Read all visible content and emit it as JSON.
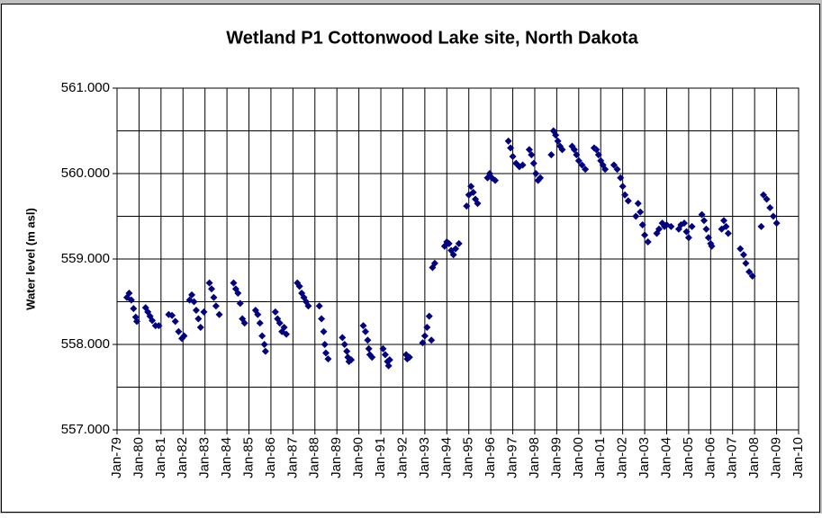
{
  "chart_data": {
    "type": "scatter",
    "title": "Wetland P1 Cottonwood Lake site, North Dakota",
    "y_label": "Water level (m asl)",
    "color": "#000080",
    "marker": "diamond",
    "grid": true,
    "xlim": [
      1979,
      2010
    ],
    "ylim": [
      557,
      561
    ],
    "xticks": [
      {
        "value": 1979,
        "label": "Jan-79"
      },
      {
        "value": 1980,
        "label": "Jan-80"
      },
      {
        "value": 1981,
        "label": "Jan-81"
      },
      {
        "value": 1982,
        "label": "Jan-82"
      },
      {
        "value": 1983,
        "label": "Jan-83"
      },
      {
        "value": 1984,
        "label": "Jan-84"
      },
      {
        "value": 1985,
        "label": "Jan-85"
      },
      {
        "value": 1986,
        "label": "Jan-86"
      },
      {
        "value": 1987,
        "label": "Jan-87"
      },
      {
        "value": 1988,
        "label": "Jan-88"
      },
      {
        "value": 1989,
        "label": "Jan-89"
      },
      {
        "value": 1990,
        "label": "Jan-90"
      },
      {
        "value": 1991,
        "label": "Jan-91"
      },
      {
        "value": 1992,
        "label": "Jan-92"
      },
      {
        "value": 1993,
        "label": "Jan-93"
      },
      {
        "value": 1994,
        "label": "Jan-94"
      },
      {
        "value": 1995,
        "label": "Jan-95"
      },
      {
        "value": 1996,
        "label": "Jan-96"
      },
      {
        "value": 1997,
        "label": "Jan-97"
      },
      {
        "value": 1998,
        "label": "Jan-98"
      },
      {
        "value": 1999,
        "label": "Jan-99"
      },
      {
        "value": 2000,
        "label": "Jan-00"
      },
      {
        "value": 2001,
        "label": "Jan-01"
      },
      {
        "value": 2002,
        "label": "Jan-02"
      },
      {
        "value": 2003,
        "label": "Jan-03"
      },
      {
        "value": 2004,
        "label": "Jan-04"
      },
      {
        "value": 2005,
        "label": "Jan-05"
      },
      {
        "value": 2006,
        "label": "Jan-06"
      },
      {
        "value": 2007,
        "label": "Jan-07"
      },
      {
        "value": 2008,
        "label": "Jan-08"
      },
      {
        "value": 2009,
        "label": "Jan-09"
      },
      {
        "value": 2010,
        "label": "Jan-10"
      }
    ],
    "yticks": [
      {
        "value": 557,
        "label": "557.000"
      },
      {
        "value": 558,
        "label": "558.000"
      },
      {
        "value": 559,
        "label": "559.000"
      },
      {
        "value": 560,
        "label": "560.000"
      },
      {
        "value": 561,
        "label": "561.000"
      }
    ],
    "yminor_ticks": [
      557.5,
      558.5,
      559.5,
      560.5
    ],
    "x": [
      1979.45,
      1979.55,
      1979.65,
      1979.75,
      1979.85,
      1979.9,
      1980.3,
      1980.4,
      1980.5,
      1980.6,
      1980.75,
      1980.9,
      1981.35,
      1981.5,
      1981.65,
      1981.8,
      1981.95,
      1982.05,
      1982.3,
      1982.4,
      1982.5,
      1982.6,
      1982.7,
      1982.8,
      1982.95,
      1983.2,
      1983.3,
      1983.4,
      1983.5,
      1983.65,
      1984.3,
      1984.4,
      1984.5,
      1984.6,
      1984.7,
      1984.8,
      1985.3,
      1985.4,
      1985.5,
      1985.6,
      1985.7,
      1985.75,
      1986.2,
      1986.3,
      1986.4,
      1986.5,
      1986.6,
      1986.7,
      1987.2,
      1987.3,
      1987.4,
      1987.5,
      1987.6,
      1987.7,
      1988.2,
      1988.3,
      1988.4,
      1988.45,
      1988.5,
      1988.6,
      1989.25,
      1989.35,
      1989.45,
      1989.5,
      1989.55,
      1989.65,
      1990.2,
      1990.3,
      1990.4,
      1990.45,
      1990.5,
      1990.6,
      1991.1,
      1991.2,
      1991.3,
      1991.35,
      1991.4,
      1992.15,
      1992.2,
      1992.3,
      1992.9,
      1993.0,
      1993.1,
      1993.2,
      1993.3,
      1993.35,
      1993.45,
      1993.9,
      1994.0,
      1994.1,
      1994.2,
      1994.3,
      1994.4,
      1994.55,
      1994.9,
      1995.0,
      1995.1,
      1995.2,
      1995.3,
      1995.4,
      1995.85,
      1995.95,
      1996.05,
      1996.2,
      1996.8,
      1996.9,
      1997.0,
      1997.15,
      1997.3,
      1997.45,
      1997.75,
      1997.85,
      1997.95,
      1998.05,
      1998.15,
      1998.25,
      1998.75,
      1998.85,
      1998.95,
      1999.05,
      1999.15,
      1999.25,
      1999.7,
      1999.8,
      1999.9,
      2000.0,
      2000.15,
      2000.3,
      2000.7,
      2000.8,
      2000.9,
      2001.0,
      2001.1,
      2001.2,
      2001.6,
      2001.75,
      2001.9,
      2002.0,
      2002.1,
      2002.25,
      2002.6,
      2002.7,
      2002.8,
      2002.9,
      2003.0,
      2003.15,
      2003.55,
      2003.65,
      2003.8,
      2003.9,
      2004.0,
      2004.2,
      2004.55,
      2004.65,
      2004.8,
      2004.9,
      2005.0,
      2005.15,
      2005.6,
      2005.7,
      2005.8,
      2005.9,
      2006.0,
      2006.05,
      2006.5,
      2006.6,
      2006.7,
      2006.8,
      2007.35,
      2007.5,
      2007.6,
      2007.75,
      2007.9,
      2008.3,
      2008.4,
      2008.55,
      2008.7,
      2008.85,
      2009.0
    ],
    "values": [
      558.55,
      558.6,
      558.52,
      558.42,
      558.32,
      558.27,
      558.43,
      558.38,
      558.33,
      558.28,
      558.22,
      558.22,
      558.35,
      558.34,
      558.27,
      558.15,
      558.07,
      558.1,
      558.52,
      558.58,
      558.5,
      558.4,
      558.3,
      558.2,
      558.38,
      558.72,
      558.65,
      558.55,
      558.45,
      558.35,
      558.72,
      558.65,
      558.6,
      558.48,
      558.3,
      558.25,
      558.4,
      558.35,
      558.25,
      558.1,
      558.0,
      557.92,
      558.38,
      558.3,
      558.25,
      558.15,
      558.2,
      558.12,
      558.72,
      558.68,
      558.6,
      558.55,
      558.5,
      558.45,
      558.45,
      558.3,
      558.15,
      558.0,
      557.9,
      557.83,
      558.08,
      558.0,
      557.92,
      557.85,
      557.8,
      557.82,
      558.22,
      558.15,
      558.05,
      557.95,
      557.88,
      557.85,
      557.95,
      557.88,
      557.8,
      557.75,
      557.82,
      557.88,
      557.83,
      557.85,
      558.02,
      558.1,
      558.2,
      558.33,
      558.05,
      558.9,
      558.95,
      559.15,
      559.2,
      559.18,
      559.1,
      559.05,
      559.12,
      559.18,
      559.62,
      559.75,
      559.85,
      559.78,
      559.7,
      559.65,
      559.95,
      560.0,
      559.95,
      559.92,
      560.38,
      560.3,
      560.2,
      560.12,
      560.08,
      560.1,
      560.28,
      560.22,
      560.12,
      560.0,
      559.92,
      559.95,
      560.22,
      560.5,
      560.45,
      560.38,
      560.32,
      560.28,
      560.32,
      560.28,
      560.22,
      560.15,
      560.1,
      560.05,
      560.3,
      560.28,
      560.22,
      560.15,
      560.1,
      560.05,
      560.1,
      560.05,
      559.95,
      559.85,
      559.75,
      559.68,
      559.5,
      559.65,
      559.55,
      559.4,
      559.28,
      559.2,
      559.3,
      559.35,
      559.42,
      559.38,
      559.4,
      559.38,
      559.35,
      559.4,
      559.42,
      559.32,
      559.25,
      559.38,
      559.52,
      559.45,
      559.35,
      559.25,
      559.18,
      559.15,
      559.35,
      559.45,
      559.38,
      559.3,
      559.12,
      559.05,
      558.95,
      558.85,
      558.8,
      559.38,
      559.75,
      559.7,
      559.6,
      559.5,
      559.42
    ]
  }
}
